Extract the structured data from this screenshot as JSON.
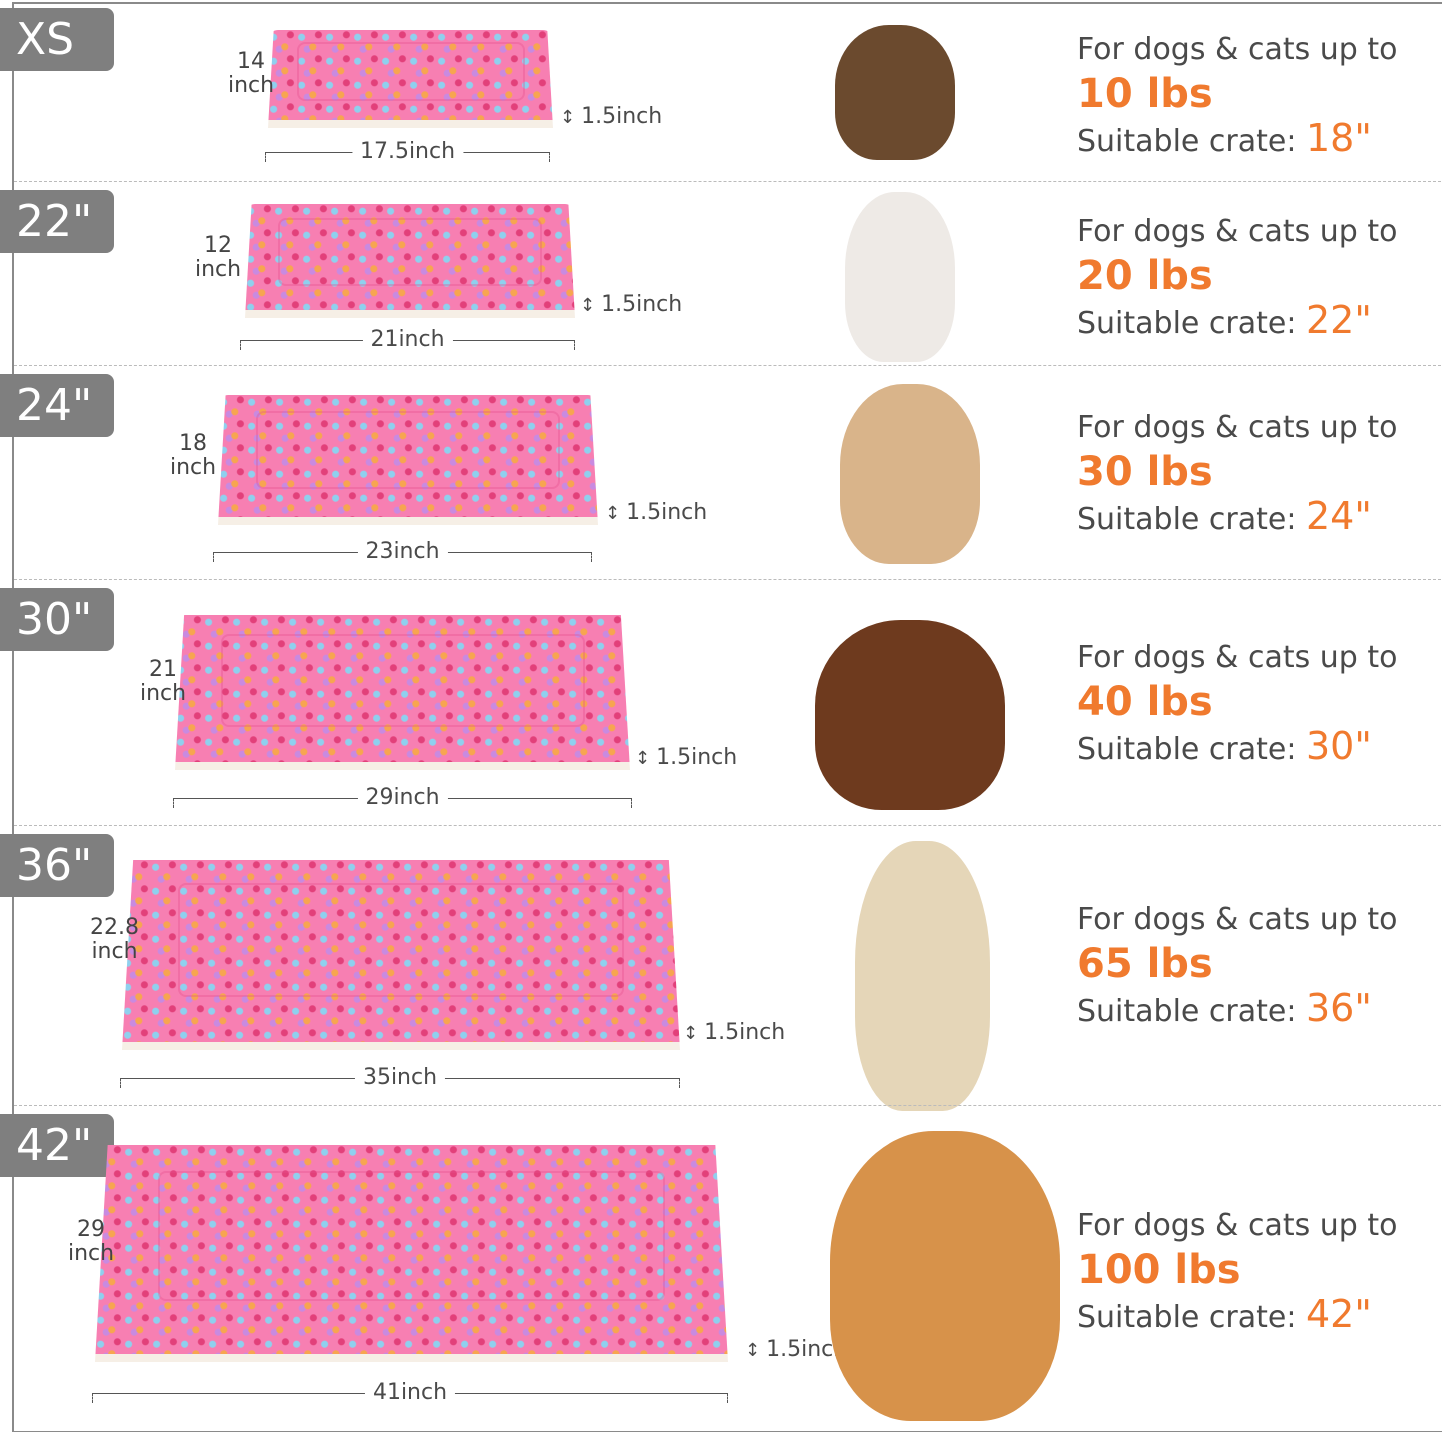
{
  "labels": {
    "intro": "For dogs & cats up to",
    "crate": "Suitable crate: "
  },
  "colors": {
    "accent": "#f07a2e",
    "tag": "#7f7f7f",
    "mat": "#f77fb2"
  },
  "rows": [
    {
      "size": "XS",
      "depth": [
        "14",
        "inch"
      ],
      "width": "17.5inch",
      "thickness": "1.5inch",
      "weight": "10 lbs",
      "crate": "18\"",
      "animal": "yorkie-puppy"
    },
    {
      "size": "22\"",
      "depth": [
        "12",
        "inch"
      ],
      "width": "21inch",
      "thickness": "1.5inch",
      "weight": "20 lbs",
      "crate": "22\"",
      "animal": "ragdoll-cat"
    },
    {
      "size": "24\"",
      "depth": [
        "18",
        "inch"
      ],
      "width": "23inch",
      "thickness": "1.5inch",
      "weight": "30 lbs",
      "crate": "24\"",
      "animal": "french-bulldog"
    },
    {
      "size": "30\"",
      "depth": [
        "21",
        "inch"
      ],
      "width": "29inch",
      "thickness": "1.5inch",
      "weight": "40 lbs",
      "crate": "30\"",
      "animal": "dachshund"
    },
    {
      "size": "36\"",
      "depth": [
        "22.8",
        "inch"
      ],
      "width": "35inch",
      "thickness": "1.5inch",
      "weight": "65 lbs",
      "crate": "36\"",
      "animal": "golden-retriever-sitting"
    },
    {
      "size": "42\"",
      "depth": [
        "29",
        "inch"
      ],
      "width": "41inch",
      "thickness": "1.5inch",
      "weight": "100 lbs",
      "crate": "42\"",
      "animal": "golden-retriever-lying"
    }
  ]
}
